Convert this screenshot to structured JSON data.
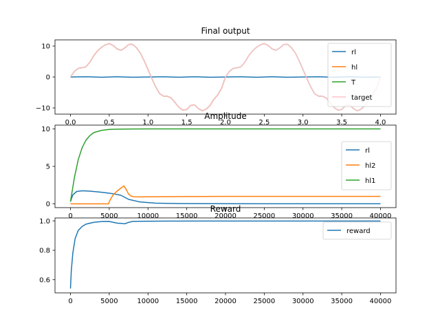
{
  "chart_data": [
    {
      "type": "line",
      "title": "Final output",
      "xlim": [
        -0.2,
        4.2
      ],
      "ylim": [
        -12,
        12
      ],
      "xticks": [
        "0.0",
        "0.5",
        "1.0",
        "1.5",
        "2.0",
        "2.5",
        "3.0",
        "3.5",
        "4.0"
      ],
      "yticks": [
        "10",
        "0",
        "−10"
      ],
      "legend_position": "right",
      "series": [
        {
          "name": "rl",
          "color": "#1f77b4",
          "x": [
            0.0,
            0.2,
            0.4,
            0.6,
            0.8,
            1.0,
            1.2,
            1.4,
            1.6,
            1.8,
            2.0,
            2.2,
            2.4,
            2.6,
            2.8,
            3.0,
            3.2,
            3.4,
            3.6,
            3.8,
            4.0
          ],
          "y": [
            0.0,
            0.1,
            -0.1,
            0.1,
            -0.1,
            0.0,
            0.1,
            -0.1,
            0.1,
            -0.1,
            0.0,
            0.1,
            -0.1,
            0.1,
            -0.1,
            0.0,
            0.1,
            -0.1,
            0.1,
            -0.1,
            0.0
          ]
        },
        {
          "name": "hl",
          "color": "#ff7f0e",
          "x": [
            0.0,
            0.05,
            0.1,
            0.15,
            0.2,
            0.25,
            0.3,
            0.35,
            0.4,
            0.45,
            0.5,
            0.55,
            0.6,
            0.65,
            0.7,
            0.75,
            0.8,
            0.85,
            0.9,
            0.95,
            1.0,
            1.05,
            1.1,
            1.15,
            1.2,
            1.25,
            1.3,
            1.35,
            1.4,
            1.45,
            1.5,
            1.55,
            1.6,
            1.65,
            1.7,
            1.75,
            1.8,
            1.85,
            1.9,
            1.95,
            2.0
          ],
          "y": [
            0.0,
            1.8,
            2.8,
            3.0,
            3.3,
            4.8,
            6.9,
            8.5,
            9.6,
            10.4,
            10.8,
            10.2,
            9.1,
            8.6,
            9.4,
            10.5,
            10.6,
            9.5,
            7.8,
            5.3,
            2.4,
            -0.5,
            -3.2,
            -5.4,
            -6.2,
            -6.2,
            -6.8,
            -8.3,
            -9.8,
            -10.7,
            -10.5,
            -9.2,
            -9.0,
            -10.2,
            -10.9,
            -10.4,
            -9.2,
            -7.2,
            -5.8,
            -3.6,
            0.0
          ]
        },
        {
          "name": "T",
          "color": "#2ca02c",
          "x": [
            0.0,
            0.05,
            0.1,
            0.15,
            0.2,
            0.25,
            0.3,
            0.35,
            0.4,
            0.45,
            0.5,
            0.55,
            0.6,
            0.65,
            0.7,
            0.75,
            0.8,
            0.85,
            0.9,
            0.95,
            1.0,
            1.05,
            1.1,
            1.15,
            1.2,
            1.25,
            1.3,
            1.35,
            1.4,
            1.45,
            1.5,
            1.55,
            1.6,
            1.65,
            1.7,
            1.75,
            1.8,
            1.85,
            1.9,
            1.95,
            2.0,
            2.05,
            2.1,
            2.15,
            2.2,
            2.25,
            2.3,
            2.35,
            2.4,
            2.45,
            2.5,
            2.55,
            2.6,
            2.65,
            2.7,
            2.75,
            2.8,
            2.85,
            2.9,
            2.95,
            3.0,
            3.05,
            3.1,
            3.15,
            3.2,
            3.25,
            3.3,
            3.35,
            3.4,
            3.45,
            3.5,
            3.55,
            3.6,
            3.65,
            3.7,
            3.75,
            3.8,
            3.85,
            3.9,
            3.95,
            4.0
          ],
          "y": [
            0.0,
            1.8,
            2.8,
            3.0,
            3.3,
            4.8,
            6.9,
            8.5,
            9.6,
            10.4,
            10.8,
            10.2,
            9.1,
            8.6,
            9.4,
            10.5,
            10.6,
            9.5,
            7.8,
            5.3,
            2.4,
            -0.5,
            -3.2,
            -5.4,
            -6.2,
            -6.2,
            -6.8,
            -8.3,
            -9.8,
            -10.7,
            -10.5,
            -9.2,
            -9.0,
            -10.2,
            -10.9,
            -10.4,
            -9.2,
            -7.2,
            -5.8,
            -3.6,
            0.0,
            1.8,
            2.8,
            3.0,
            3.3,
            4.8,
            6.9,
            8.5,
            9.6,
            10.4,
            10.8,
            10.2,
            9.1,
            8.6,
            9.4,
            10.5,
            10.6,
            9.5,
            7.8,
            5.3,
            2.4,
            -0.5,
            -3.2,
            -5.4,
            -6.2,
            -6.2,
            -6.8,
            -8.3,
            -9.8,
            -10.7,
            -10.5,
            -9.2,
            -9.0,
            -10.2,
            -10.9,
            -10.4,
            -9.2,
            -7.2,
            -5.8,
            -3.6,
            0.0
          ]
        },
        {
          "name": "target",
          "color": "#ffc0cb",
          "x": [
            0.0,
            0.05,
            0.1,
            0.15,
            0.2,
            0.25,
            0.3,
            0.35,
            0.4,
            0.45,
            0.5,
            0.55,
            0.6,
            0.65,
            0.7,
            0.75,
            0.8,
            0.85,
            0.9,
            0.95,
            1.0,
            1.05,
            1.1,
            1.15,
            1.2,
            1.25,
            1.3,
            1.35,
            1.4,
            1.45,
            1.5,
            1.55,
            1.6,
            1.65,
            1.7,
            1.75,
            1.8,
            1.85,
            1.9,
            1.95,
            2.0,
            2.05,
            2.1,
            2.15,
            2.2,
            2.25,
            2.3,
            2.35,
            2.4,
            2.45,
            2.5,
            2.55,
            2.6,
            2.65,
            2.7,
            2.75,
            2.8,
            2.85,
            2.9,
            2.95,
            3.0,
            3.05,
            3.1,
            3.15,
            3.2,
            3.25,
            3.3,
            3.35,
            3.4,
            3.45,
            3.5,
            3.55,
            3.6,
            3.65,
            3.7,
            3.75,
            3.8,
            3.85,
            3.9,
            3.95,
            4.0
          ],
          "y": [
            0.0,
            1.8,
            2.8,
            3.0,
            3.3,
            4.8,
            6.9,
            8.5,
            9.6,
            10.4,
            10.8,
            10.2,
            9.1,
            8.6,
            9.4,
            10.5,
            10.6,
            9.5,
            7.8,
            5.3,
            2.4,
            -0.5,
            -3.2,
            -5.4,
            -6.2,
            -6.2,
            -6.8,
            -8.3,
            -9.8,
            -10.7,
            -10.5,
            -9.2,
            -9.0,
            -10.2,
            -10.9,
            -10.4,
            -9.2,
            -7.2,
            -5.8,
            -3.6,
            0.0,
            1.8,
            2.8,
            3.0,
            3.3,
            4.8,
            6.9,
            8.5,
            9.6,
            10.4,
            10.8,
            10.2,
            9.1,
            8.6,
            9.4,
            10.5,
            10.6,
            9.5,
            7.8,
            5.3,
            2.4,
            -0.5,
            -3.2,
            -5.4,
            -6.2,
            -6.2,
            -6.8,
            -8.3,
            -9.8,
            -10.7,
            -10.5,
            -9.2,
            -9.0,
            -10.2,
            -10.9,
            -10.4,
            -9.2,
            -7.2,
            -5.8,
            -3.6,
            0.0
          ]
        }
      ]
    },
    {
      "type": "line",
      "title": "Amplitude",
      "xlim": [
        -2000,
        42000
      ],
      "ylim": [
        -0.5,
        10.5
      ],
      "xticks": [
        "0",
        "5000",
        "10000",
        "15000",
        "20000",
        "25000",
        "30000",
        "35000",
        "40000"
      ],
      "yticks": [
        "10",
        "5",
        "0"
      ],
      "legend_position": "right",
      "series": [
        {
          "name": "rl",
          "color": "#1f77b4",
          "x": [
            0,
            300,
            800,
            1500,
            2500,
            4000,
            5500,
            6500,
            7500,
            9000,
            11000,
            14000,
            18000,
            25000,
            40000
          ],
          "y": [
            0.3,
            1.2,
            1.65,
            1.75,
            1.7,
            1.55,
            1.35,
            1.15,
            0.6,
            0.25,
            0.1,
            0.04,
            0.02,
            0.01,
            0.01
          ]
        },
        {
          "name": "hl2",
          "color": "#ff7f0e",
          "x": [
            0,
            4900,
            5100,
            5500,
            6000,
            6500,
            6900,
            7200,
            7500,
            7800,
            8200,
            9000,
            10000,
            12000,
            15000,
            20000,
            40000
          ],
          "y": [
            0,
            0,
            0.5,
            1.2,
            1.7,
            2.1,
            2.4,
            1.9,
            1.3,
            1.05,
            0.95,
            0.93,
            0.94,
            0.96,
            0.98,
            1.0,
            1.0
          ]
        },
        {
          "name": "hl1",
          "color": "#2ca02c",
          "x": [
            0,
            500,
            1000,
            1500,
            2000,
            2500,
            3000,
            4000,
            5000,
            6000,
            8000,
            10000,
            15000,
            40000
          ],
          "y": [
            0.3,
            3.5,
            5.9,
            7.5,
            8.5,
            9.1,
            9.5,
            9.8,
            9.92,
            9.96,
            9.99,
            10.0,
            10.0,
            10.0
          ]
        }
      ]
    },
    {
      "type": "line",
      "title": "Reward",
      "xlim": [
        -2000,
        42000
      ],
      "ylim": [
        0.51,
        1.02
      ],
      "xticks": [
        "0",
        "5000",
        "10000",
        "15000",
        "20000",
        "25000",
        "30000",
        "35000",
        "40000"
      ],
      "yticks": [
        "1.0",
        "0.8",
        "0.6"
      ],
      "legend_position": "top-right",
      "series": [
        {
          "name": "reward",
          "color": "#1f77b4",
          "x": [
            0,
            100,
            300,
            600,
            1000,
            1500,
            2000,
            3000,
            4000,
            5000,
            6000,
            7000,
            7500,
            8000,
            10000,
            15000,
            40000
          ],
          "y": [
            0.54,
            0.66,
            0.78,
            0.88,
            0.935,
            0.962,
            0.978,
            0.99,
            0.995,
            0.996,
            0.985,
            0.98,
            0.99,
            0.996,
            0.998,
            0.999,
            0.999
          ]
        }
      ]
    }
  ]
}
